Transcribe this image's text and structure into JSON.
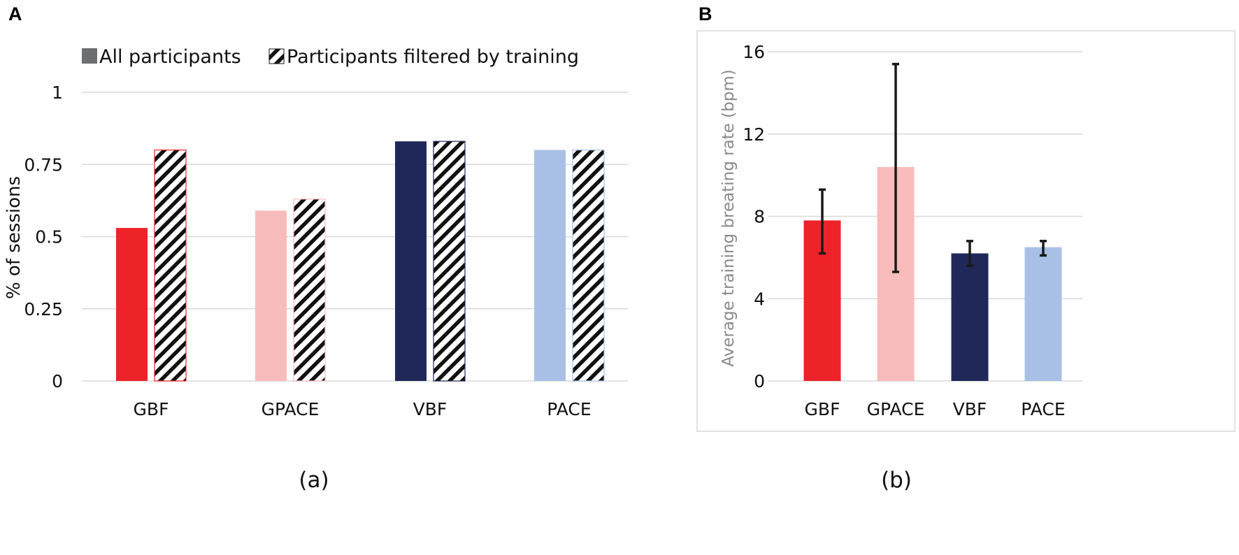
{
  "chart_data": [
    {
      "panel": "A",
      "caption": "(a)",
      "type": "bar",
      "ylabel": "% of sessions",
      "ylim": [
        0,
        1
      ],
      "yticks": [
        0,
        0.25,
        0.5,
        0.75,
        1
      ],
      "ytick_labels": [
        "0",
        "0.25",
        "0.5",
        "0.75",
        "1"
      ],
      "categories": [
        "GBF",
        "GPACE",
        "VBF",
        "PACE"
      ],
      "category_colors": [
        "#ee2229",
        "#f9bcbc",
        "#20285a",
        "#a9c0e6"
      ],
      "series": [
        {
          "name": "All participants",
          "style": "solid",
          "values": [
            0.53,
            0.59,
            0.83,
            0.8
          ]
        },
        {
          "name": "Participants filtered by training",
          "style": "hatched",
          "values": [
            0.8,
            0.63,
            0.83,
            0.8
          ]
        }
      ],
      "grid": true,
      "legend_position": "top"
    },
    {
      "panel": "B",
      "caption": "(b)",
      "type": "bar",
      "ylabel": "Average training breating rate (bpm)",
      "ylim": [
        0,
        16
      ],
      "yticks": [
        0,
        4,
        8,
        12,
        16
      ],
      "ytick_labels": [
        "0",
        "4",
        "8",
        "12",
        "16"
      ],
      "categories": [
        "GBF",
        "GPACE",
        "VBF",
        "PACE"
      ],
      "category_colors": [
        "#ee2229",
        "#f9bcbc",
        "#20285a",
        "#a9c0e6"
      ],
      "values": [
        7.8,
        10.4,
        6.2,
        6.5
      ],
      "error_low": [
        6.2,
        5.3,
        5.6,
        6.1
      ],
      "error_high": [
        9.3,
        15.4,
        6.8,
        6.8
      ],
      "grid": true
    }
  ]
}
